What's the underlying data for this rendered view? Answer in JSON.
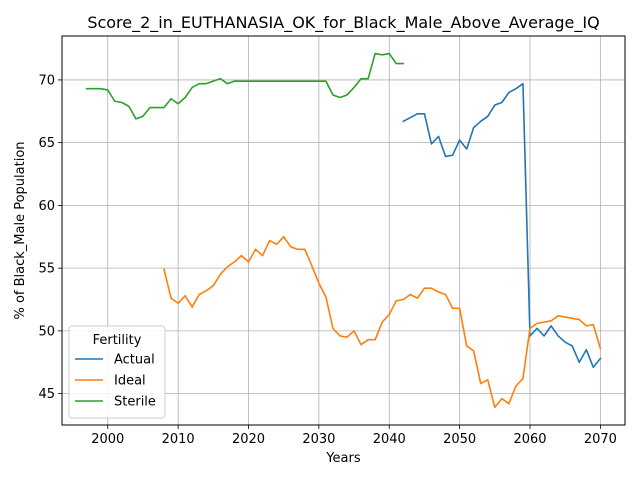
{
  "chart_data": {
    "type": "line",
    "title": "Score_2_in_EUTHANASIA_OK_for_Black_Male_Above_Average_IQ",
    "xlabel": "Years",
    "ylabel": "% of Black_Male Population",
    "xlim": [
      1993.5,
      2073.5
    ],
    "ylim": [
      42.5,
      73.5
    ],
    "xticks": [
      2000,
      2010,
      2020,
      2030,
      2040,
      2050,
      2060,
      2070
    ],
    "yticks": [
      45,
      50,
      55,
      60,
      65,
      70
    ],
    "grid": true,
    "legend": {
      "title": "Fertility",
      "placement": "lower-left"
    },
    "series": [
      {
        "name": "Actual",
        "color": "#1f77b4",
        "points": [
          [
            2042,
            66.7
          ],
          [
            2043,
            67.0
          ],
          [
            2044,
            67.3
          ],
          [
            2045,
            67.3
          ],
          [
            2046,
            64.9
          ],
          [
            2047,
            65.5
          ],
          [
            2048,
            63.9
          ],
          [
            2049,
            64.0
          ],
          [
            2050,
            65.2
          ],
          [
            2051,
            64.5
          ],
          [
            2052,
            66.2
          ],
          [
            2053,
            66.7
          ],
          [
            2054,
            67.1
          ],
          [
            2055,
            68.0
          ],
          [
            2056,
            68.2
          ],
          [
            2057,
            69.0
          ],
          [
            2058,
            69.3
          ],
          [
            2059,
            69.7
          ],
          [
            2060,
            49.6
          ],
          [
            2061,
            50.2
          ],
          [
            2062,
            49.6
          ],
          [
            2063,
            50.4
          ],
          [
            2064,
            49.6
          ],
          [
            2065,
            49.1
          ],
          [
            2066,
            48.8
          ],
          [
            2067,
            47.5
          ],
          [
            2068,
            48.5
          ],
          [
            2069,
            47.1
          ],
          [
            2070,
            47.8
          ]
        ]
      },
      {
        "name": "Ideal",
        "color": "#ff7f0e",
        "points": [
          [
            2008,
            54.9
          ],
          [
            2009,
            52.6
          ],
          [
            2010,
            52.2
          ],
          [
            2011,
            52.8
          ],
          [
            2012,
            51.9
          ],
          [
            2013,
            52.9
          ],
          [
            2014,
            53.2
          ],
          [
            2015,
            53.6
          ],
          [
            2016,
            54.5
          ],
          [
            2017,
            55.1
          ],
          [
            2018,
            55.5
          ],
          [
            2019,
            56.0
          ],
          [
            2020,
            55.5
          ],
          [
            2021,
            56.5
          ],
          [
            2022,
            56.0
          ],
          [
            2023,
            57.2
          ],
          [
            2024,
            56.9
          ],
          [
            2025,
            57.5
          ],
          [
            2026,
            56.7
          ],
          [
            2027,
            56.5
          ],
          [
            2028,
            56.5
          ],
          [
            2029,
            55.2
          ],
          [
            2030,
            53.8
          ],
          [
            2031,
            52.7
          ],
          [
            2032,
            50.2
          ],
          [
            2033,
            49.6
          ],
          [
            2034,
            49.5
          ],
          [
            2035,
            50.0
          ],
          [
            2036,
            48.9
          ],
          [
            2037,
            49.3
          ],
          [
            2038,
            49.3
          ],
          [
            2039,
            50.7
          ],
          [
            2040,
            51.3
          ],
          [
            2041,
            52.4
          ],
          [
            2042,
            52.5
          ],
          [
            2043,
            52.9
          ],
          [
            2044,
            52.6
          ],
          [
            2045,
            53.4
          ],
          [
            2046,
            53.4
          ],
          [
            2047,
            53.1
          ],
          [
            2048,
            52.9
          ],
          [
            2049,
            51.8
          ],
          [
            2050,
            51.8
          ],
          [
            2051,
            48.8
          ],
          [
            2052,
            48.4
          ],
          [
            2053,
            45.8
          ],
          [
            2054,
            46.1
          ],
          [
            2055,
            43.9
          ],
          [
            2056,
            44.6
          ],
          [
            2057,
            44.2
          ],
          [
            2058,
            45.6
          ],
          [
            2059,
            46.2
          ],
          [
            2060,
            50.2
          ],
          [
            2061,
            50.6
          ],
          [
            2062,
            50.7
          ],
          [
            2063,
            50.8
          ],
          [
            2064,
            51.2
          ],
          [
            2065,
            51.1
          ],
          [
            2066,
            51.0
          ],
          [
            2067,
            50.9
          ],
          [
            2068,
            50.4
          ],
          [
            2069,
            50.5
          ],
          [
            2070,
            48.6
          ]
        ]
      },
      {
        "name": "Sterile",
        "color": "#2ca02c",
        "points": [
          [
            1997,
            69.3
          ],
          [
            1998,
            69.3
          ],
          [
            1999,
            69.3
          ],
          [
            2000,
            69.2
          ],
          [
            2001,
            68.3
          ],
          [
            2002,
            68.2
          ],
          [
            2003,
            67.9
          ],
          [
            2004,
            66.9
          ],
          [
            2005,
            67.1
          ],
          [
            2006,
            67.8
          ],
          [
            2007,
            67.8
          ],
          [
            2008,
            67.8
          ],
          [
            2009,
            68.5
          ],
          [
            2010,
            68.1
          ],
          [
            2011,
            68.6
          ],
          [
            2012,
            69.4
          ],
          [
            2013,
            69.7
          ],
          [
            2014,
            69.7
          ],
          [
            2015,
            69.9
          ],
          [
            2016,
            70.1
          ],
          [
            2017,
            69.7
          ],
          [
            2018,
            69.9
          ],
          [
            2019,
            69.9
          ],
          [
            2020,
            69.9
          ],
          [
            2021,
            69.9
          ],
          [
            2022,
            69.9
          ],
          [
            2023,
            69.9
          ],
          [
            2024,
            69.9
          ],
          [
            2025,
            69.9
          ],
          [
            2026,
            69.9
          ],
          [
            2027,
            69.9
          ],
          [
            2028,
            69.9
          ],
          [
            2029,
            69.9
          ],
          [
            2030,
            69.9
          ],
          [
            2031,
            69.9
          ],
          [
            2032,
            68.8
          ],
          [
            2033,
            68.6
          ],
          [
            2034,
            68.8
          ],
          [
            2035,
            69.4
          ],
          [
            2036,
            70.1
          ],
          [
            2037,
            70.1
          ],
          [
            2038,
            72.1
          ],
          [
            2039,
            72.0
          ],
          [
            2040,
            72.1
          ],
          [
            2041,
            71.3
          ],
          [
            2042,
            71.3
          ]
        ]
      }
    ]
  }
}
